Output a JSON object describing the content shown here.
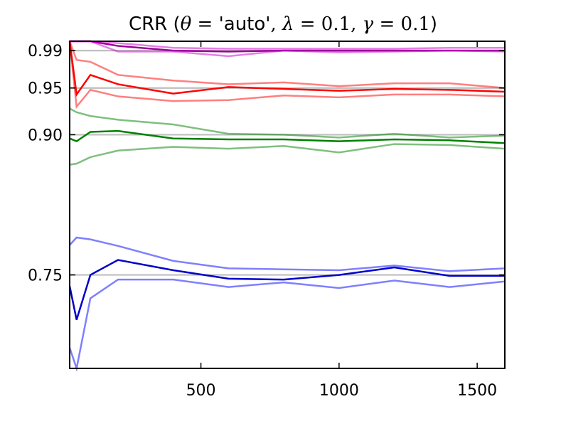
{
  "chart_data": {
    "type": "line",
    "title": {
      "prefix": "CRR (",
      "theta": "θ",
      "eq": " = ",
      "auto": "'auto'",
      "comma": ", ",
      "lambda": "λ",
      "lambda_val": "0.1",
      "gamma": "γ",
      "gamma_val": "0.1",
      "suffix": ")"
    },
    "xlabel": "",
    "ylabel": "",
    "xlim": [
      25,
      1600
    ],
    "ylim": [
      0.65,
      1.0
    ],
    "grid": false,
    "x_ticks": [
      500,
      1000,
      1500
    ],
    "x_tick_labels": [
      "500",
      "1000",
      "1500"
    ],
    "y_ticks": [
      0.75,
      0.9,
      0.95,
      0.99
    ],
    "y_tick_labels": [
      "0.75",
      "0.90",
      "0.95",
      "0.99"
    ],
    "reference_lines": [
      0.75,
      0.9,
      0.95,
      0.99
    ],
    "reference_color": "#bfbfbf",
    "x": [
      25,
      50,
      100,
      200,
      400,
      600,
      800,
      1000,
      1200,
      1400,
      1600
    ],
    "series": [
      {
        "color": "#0000cc",
        "opacity": 1.0,
        "values": [
          0.738,
          0.702,
          0.75,
          0.766,
          0.755,
          0.746,
          0.745,
          0.75,
          0.758,
          0.749,
          0.749
        ]
      },
      {
        "color": "#0000ff",
        "opacity": 0.5,
        "values": [
          0.782,
          0.79,
          0.788,
          0.781,
          0.765,
          0.757,
          0.756,
          0.755,
          0.76,
          0.754,
          0.757
        ]
      },
      {
        "color": "#0000ff",
        "opacity": 0.5,
        "values": [
          0.672,
          0.65,
          0.725,
          0.745,
          0.745,
          0.737,
          0.742,
          0.736,
          0.744,
          0.737,
          0.743
        ]
      },
      {
        "color": "#008000",
        "opacity": 1.0,
        "values": [
          0.896,
          0.893,
          0.903,
          0.904,
          0.896,
          0.895,
          0.895,
          0.893,
          0.895,
          0.894,
          0.891
        ]
      },
      {
        "color": "#008000",
        "opacity": 0.5,
        "values": [
          0.928,
          0.924,
          0.92,
          0.916,
          0.911,
          0.901,
          0.9,
          0.897,
          0.901,
          0.897,
          0.899
        ]
      },
      {
        "color": "#008000",
        "opacity": 0.5,
        "values": [
          0.868,
          0.869,
          0.876,
          0.883,
          0.887,
          0.885,
          0.888,
          0.881,
          0.89,
          0.889,
          0.885
        ]
      },
      {
        "color": "#ff0000",
        "opacity": 1.0,
        "values": [
          1.0,
          0.943,
          0.964,
          0.954,
          0.944,
          0.951,
          0.949,
          0.947,
          0.949,
          0.948,
          0.946
        ]
      },
      {
        "color": "#ff0000",
        "opacity": 0.5,
        "values": [
          1.0,
          0.98,
          0.978,
          0.964,
          0.958,
          0.954,
          0.956,
          0.952,
          0.955,
          0.955,
          0.95
        ]
      },
      {
        "color": "#ff0000",
        "opacity": 0.5,
        "values": [
          1.0,
          0.93,
          0.948,
          0.941,
          0.936,
          0.937,
          0.942,
          0.94,
          0.943,
          0.943,
          0.941
        ]
      },
      {
        "color": "#990099",
        "opacity": 1.0,
        "values": [
          1.0,
          1.0,
          1.0,
          0.995,
          0.99,
          0.989,
          0.99,
          0.99,
          0.99,
          0.99,
          0.99
        ]
      },
      {
        "color": "#cc00cc",
        "opacity": 0.5,
        "values": [
          1.0,
          1.0,
          1.0,
          0.998,
          0.993,
          0.992,
          0.992,
          0.992,
          0.992,
          0.993,
          0.993
        ]
      },
      {
        "color": "#cc00cc",
        "opacity": 0.5,
        "values": [
          1.0,
          1.0,
          1.0,
          0.989,
          0.989,
          0.984,
          0.99,
          0.988,
          0.989,
          0.99,
          0.989
        ]
      }
    ]
  }
}
